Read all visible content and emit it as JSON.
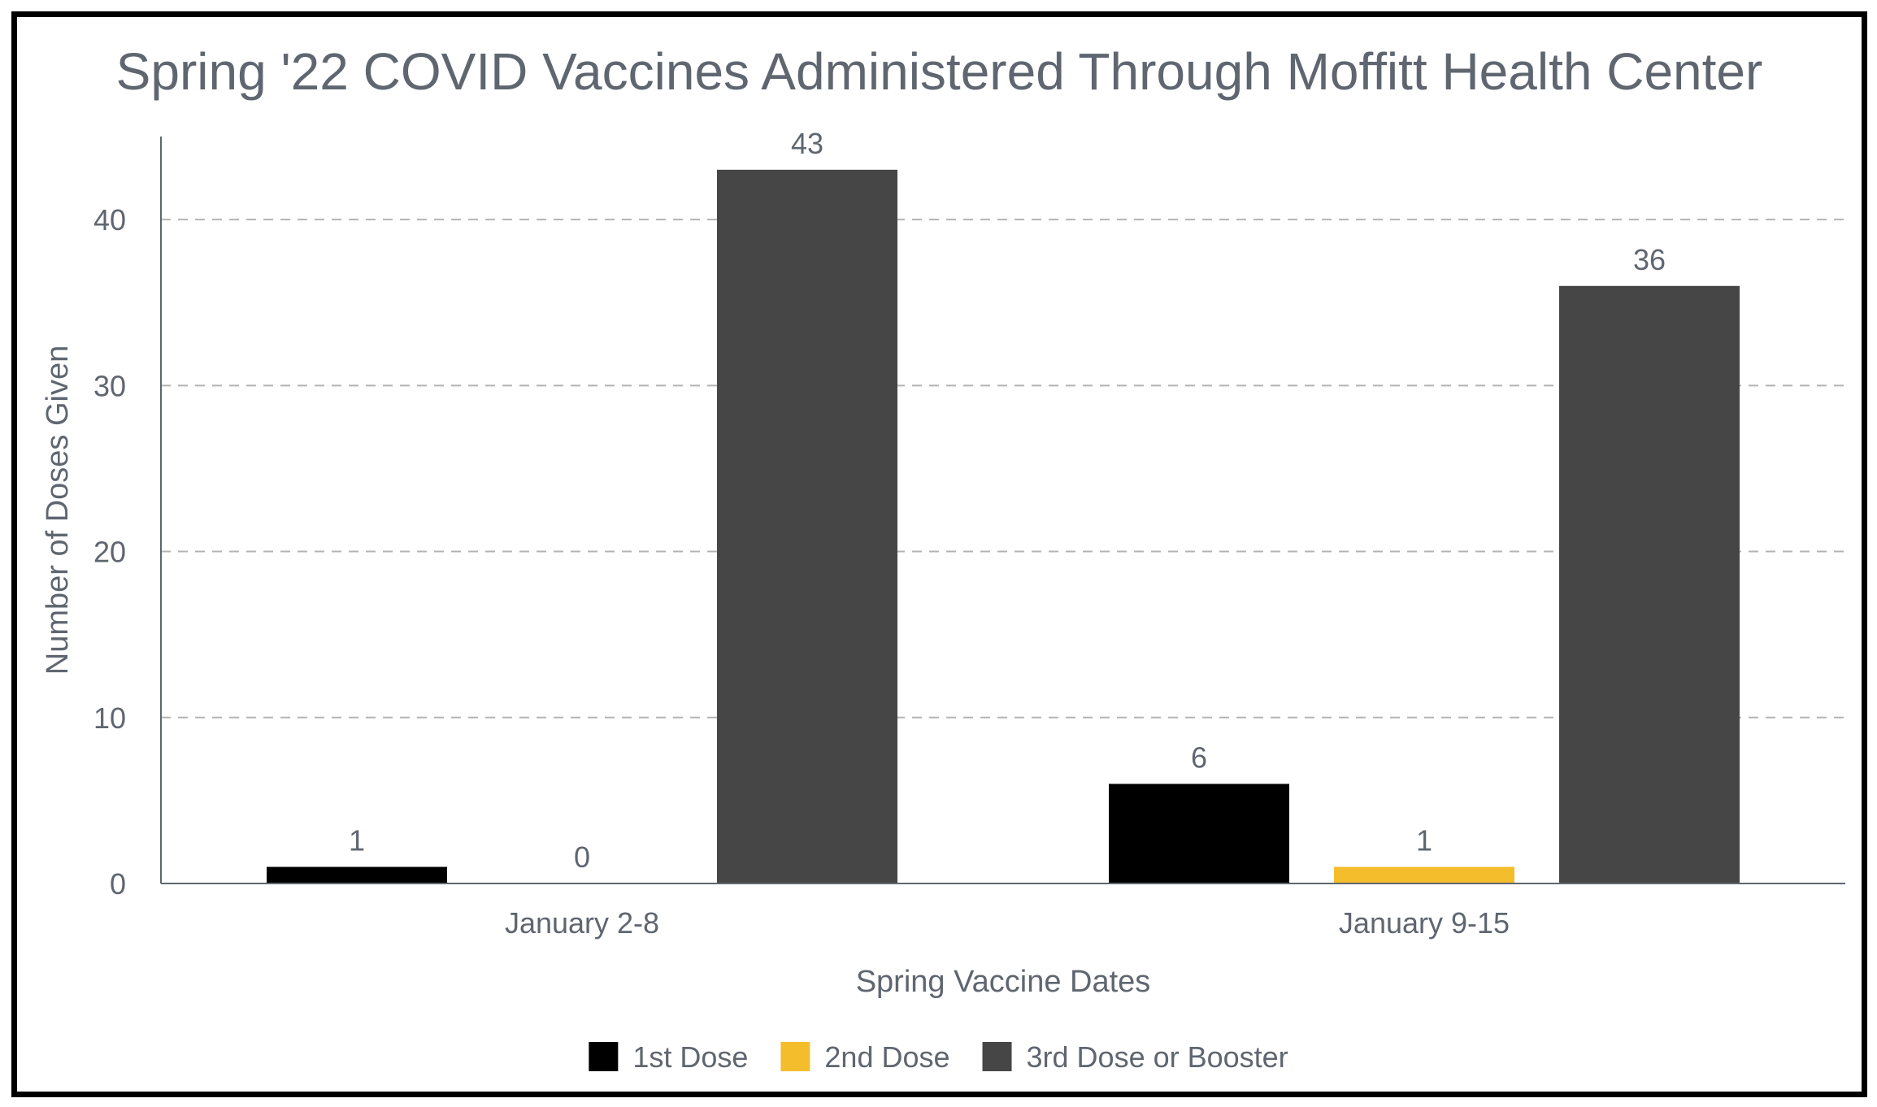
{
  "chart_data": {
    "type": "bar",
    "title": "Spring '22 COVID Vaccines Administered Through Moffitt Health Center",
    "xlabel": "Spring Vaccine Dates",
    "ylabel": "Number of Doses Given",
    "categories": [
      "January 2-8",
      "January 9-15"
    ],
    "series": [
      {
        "name": "1st Dose",
        "values": [
          1,
          6
        ],
        "color": "#000000"
      },
      {
        "name": "2nd Dose",
        "values": [
          0,
          1
        ],
        "color": "#f4bd2c"
      },
      {
        "name": "3rd Dose or Booster",
        "values": [
          43,
          36
        ],
        "color": "#464646"
      }
    ],
    "ylim": [
      0,
      45
    ],
    "yticks": [
      0,
      10,
      20,
      30,
      40
    ],
    "grid": "horizontal dashed",
    "legend": "bottom-center",
    "data_labels": true,
    "text_color": "#5f6670"
  }
}
